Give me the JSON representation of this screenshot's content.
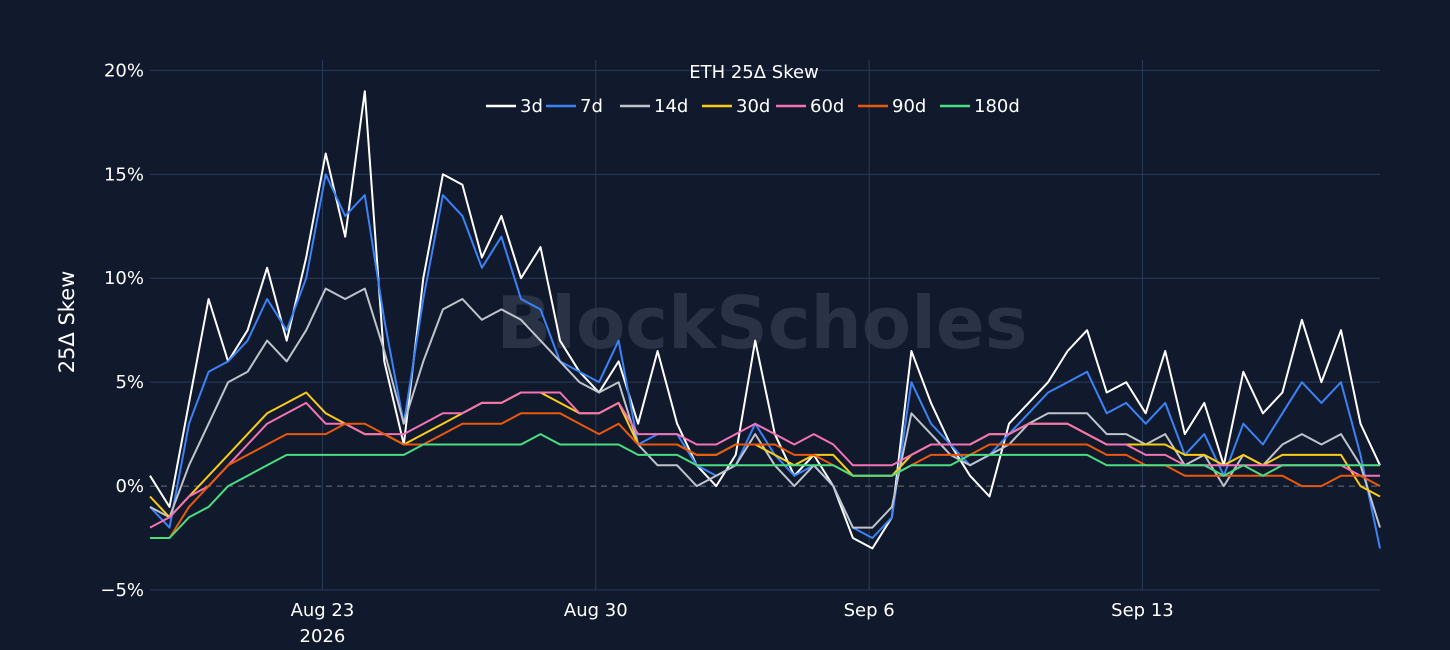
{
  "chart_data": {
    "type": "line",
    "title": "ETH 25Δ Skew",
    "ylabel": "25Δ Skew",
    "xlabel": "",
    "watermark": "BlockScholes",
    "x_range": [
      "2026-08-18T14:00",
      "2026-09-19T02:00"
    ],
    "ylim": [
      -5,
      20.5
    ],
    "y_ticks": [
      {
        "value": -5,
        "label": "−5%"
      },
      {
        "value": 0,
        "label": "0%"
      },
      {
        "value": 5,
        "label": "5%"
      },
      {
        "value": 10,
        "label": "10%"
      },
      {
        "value": 15,
        "label": "15%"
      },
      {
        "value": 20,
        "label": "20%"
      }
    ],
    "x_ticks": [
      {
        "value": "2026-08-23T00:00",
        "label": "Aug 23",
        "sublabel": "2026"
      },
      {
        "value": "2026-08-30T00:00",
        "label": "Aug 30",
        "sublabel": ""
      },
      {
        "value": "2026-09-06T00:00",
        "label": "Sep 6",
        "sublabel": ""
      },
      {
        "value": "2026-09-13T00:00",
        "label": "Sep 13",
        "sublabel": ""
      }
    ],
    "grid": true,
    "zero_line": "dashed",
    "legend_placement": "top-center",
    "x": [
      "2026-08-18T14:00",
      "2026-08-19T02:00",
      "2026-08-19T14:00",
      "2026-08-20T02:00",
      "2026-08-20T14:00",
      "2026-08-21T02:00",
      "2026-08-21T14:00",
      "2026-08-22T02:00",
      "2026-08-22T14:00",
      "2026-08-23T02:00",
      "2026-08-23T14:00",
      "2026-08-24T02:00",
      "2026-08-24T14:00",
      "2026-08-25T02:00",
      "2026-08-25T14:00",
      "2026-08-26T02:00",
      "2026-08-26T14:00",
      "2026-08-27T02:00",
      "2026-08-27T14:00",
      "2026-08-28T02:00",
      "2026-08-28T14:00",
      "2026-08-29T02:00",
      "2026-08-29T14:00",
      "2026-08-30T02:00",
      "2026-08-30T14:00",
      "2026-08-31T02:00",
      "2026-08-31T14:00",
      "2026-09-01T02:00",
      "2026-09-01T14:00",
      "2026-09-02T02:00",
      "2026-09-02T14:00",
      "2026-09-03T02:00",
      "2026-09-03T14:00",
      "2026-09-04T02:00",
      "2026-09-04T14:00",
      "2026-09-05T02:00",
      "2026-09-05T14:00",
      "2026-09-06T02:00",
      "2026-09-06T14:00",
      "2026-09-07T02:00",
      "2026-09-07T14:00",
      "2026-09-08T02:00",
      "2026-09-08T14:00",
      "2026-09-09T02:00",
      "2026-09-09T14:00",
      "2026-09-10T02:00",
      "2026-09-10T14:00",
      "2026-09-11T02:00",
      "2026-09-11T14:00",
      "2026-09-12T02:00",
      "2026-09-12T14:00",
      "2026-09-13T02:00",
      "2026-09-13T14:00",
      "2026-09-14T02:00",
      "2026-09-14T14:00",
      "2026-09-15T02:00",
      "2026-09-15T14:00",
      "2026-09-16T02:00",
      "2026-09-16T14:00",
      "2026-09-17T02:00",
      "2026-09-17T14:00",
      "2026-09-18T02:00",
      "2026-09-18T14:00",
      "2026-09-19T02:00"
    ],
    "series": [
      {
        "name": "3d",
        "color": "#ffffff",
        "values": [
          0.5,
          -1.0,
          4.0,
          9.0,
          6.0,
          7.5,
          10.5,
          7.0,
          11.0,
          16.0,
          12.0,
          19.0,
          6.0,
          2.0,
          10.0,
          15.0,
          14.5,
          11.0,
          13.0,
          10.0,
          11.5,
          7.0,
          5.5,
          4.5,
          6.0,
          3.0,
          6.5,
          3.0,
          1.0,
          0.0,
          1.5,
          7.0,
          2.5,
          0.5,
          1.5,
          0.0,
          -2.5,
          -3.0,
          -1.5,
          6.5,
          4.0,
          2.0,
          0.5,
          -0.5,
          3.0,
          4.0,
          5.0,
          6.5,
          7.5,
          4.5,
          5.0,
          3.5,
          6.5,
          2.5,
          4.0,
          1.0,
          5.5,
          3.5,
          4.5,
          8.0,
          5.0,
          7.5,
          3.0,
          1.0
        ]
      },
      {
        "name": "7d",
        "color": "#3b82f6",
        "values": [
          -1.0,
          -2.0,
          3.0,
          5.5,
          6.0,
          7.0,
          9.0,
          7.5,
          10.0,
          15.0,
          13.0,
          14.0,
          8.0,
          3.0,
          9.0,
          14.0,
          13.0,
          10.5,
          12.0,
          9.0,
          8.5,
          6.0,
          5.5,
          5.0,
          7.0,
          2.0,
          2.5,
          2.5,
          1.0,
          0.5,
          1.0,
          3.0,
          1.5,
          0.5,
          1.0,
          0.0,
          -2.0,
          -2.5,
          -1.5,
          5.0,
          3.0,
          2.0,
          1.0,
          1.5,
          2.5,
          3.5,
          4.5,
          5.0,
          5.5,
          3.5,
          4.0,
          3.0,
          4.0,
          1.5,
          2.5,
          0.5,
          3.0,
          2.0,
          3.5,
          5.0,
          4.0,
          5.0,
          1.5,
          -3.0
        ]
      },
      {
        "name": "14d",
        "color": "#bfc3cc",
        "values": [
          -1.0,
          -1.5,
          1.0,
          3.0,
          5.0,
          5.5,
          7.0,
          6.0,
          7.5,
          9.5,
          9.0,
          9.5,
          6.5,
          3.0,
          6.0,
          8.5,
          9.0,
          8.0,
          8.5,
          8.0,
          7.0,
          6.0,
          5.0,
          4.5,
          5.0,
          2.0,
          1.0,
          1.0,
          0.0,
          0.5,
          1.0,
          2.5,
          1.0,
          0.0,
          1.0,
          0.0,
          -2.0,
          -2.0,
          -1.0,
          3.5,
          2.5,
          1.5,
          1.0,
          1.5,
          2.0,
          3.0,
          3.5,
          3.5,
          3.5,
          2.5,
          2.5,
          2.0,
          2.5,
          1.0,
          1.5,
          0.0,
          1.5,
          1.0,
          2.0,
          2.5,
          2.0,
          2.5,
          1.0,
          -2.0
        ]
      },
      {
        "name": "30d",
        "color": "#facc15",
        "values": [
          -0.5,
          -1.5,
          -0.5,
          0.5,
          1.5,
          2.5,
          3.5,
          4.0,
          4.5,
          3.5,
          3.0,
          2.5,
          2.5,
          2.0,
          2.5,
          3.0,
          3.5,
          4.0,
          4.0,
          4.5,
          4.5,
          4.0,
          3.5,
          3.5,
          4.0,
          2.0,
          2.0,
          2.0,
          1.5,
          1.5,
          2.0,
          2.0,
          1.5,
          1.0,
          1.5,
          1.5,
          0.5,
          0.5,
          0.5,
          1.5,
          2.0,
          2.0,
          2.0,
          2.5,
          2.5,
          3.0,
          3.0,
          3.0,
          2.5,
          2.0,
          2.0,
          2.0,
          2.0,
          1.5,
          1.5,
          1.0,
          1.5,
          1.0,
          1.5,
          1.5,
          1.5,
          1.5,
          0.0,
          -0.5
        ]
      },
      {
        "name": "60d",
        "color": "#f472b6",
        "values": [
          -2.0,
          -1.5,
          -0.5,
          0.0,
          1.0,
          2.0,
          3.0,
          3.5,
          4.0,
          3.0,
          3.0,
          2.5,
          2.5,
          2.5,
          3.0,
          3.5,
          3.5,
          4.0,
          4.0,
          4.5,
          4.5,
          4.5,
          3.5,
          3.5,
          4.0,
          2.5,
          2.5,
          2.5,
          2.0,
          2.0,
          2.5,
          3.0,
          2.5,
          2.0,
          2.5,
          2.0,
          1.0,
          1.0,
          1.0,
          1.5,
          2.0,
          2.0,
          2.0,
          2.5,
          2.5,
          3.0,
          3.0,
          3.0,
          2.5,
          2.0,
          2.0,
          1.5,
          1.5,
          1.0,
          1.0,
          1.0,
          1.0,
          1.0,
          1.0,
          1.0,
          1.0,
          1.0,
          0.5,
          0.5
        ]
      },
      {
        "name": "90d",
        "color": "#ea580c",
        "values": [
          -2.5,
          -2.5,
          -1.0,
          0.0,
          1.0,
          1.5,
          2.0,
          2.5,
          2.5,
          2.5,
          3.0,
          3.0,
          2.5,
          2.0,
          2.0,
          2.5,
          3.0,
          3.0,
          3.0,
          3.5,
          3.5,
          3.5,
          3.0,
          2.5,
          3.0,
          2.0,
          2.0,
          2.0,
          1.5,
          1.5,
          2.0,
          2.0,
          2.0,
          1.5,
          1.5,
          1.0,
          0.5,
          0.5,
          0.5,
          1.0,
          1.5,
          1.5,
          1.5,
          2.0,
          2.0,
          2.0,
          2.0,
          2.0,
          2.0,
          1.5,
          1.5,
          1.0,
          1.0,
          0.5,
          0.5,
          0.5,
          0.5,
          0.5,
          0.5,
          0.0,
          0.0,
          0.5,
          0.5,
          0.0
        ]
      },
      {
        "name": "180d",
        "color": "#4ade80",
        "values": [
          -2.5,
          -2.5,
          -1.5,
          -1.0,
          0.0,
          0.5,
          1.0,
          1.5,
          1.5,
          1.5,
          1.5,
          1.5,
          1.5,
          1.5,
          2.0,
          2.0,
          2.0,
          2.0,
          2.0,
          2.0,
          2.5,
          2.0,
          2.0,
          2.0,
          2.0,
          1.5,
          1.5,
          1.5,
          1.0,
          1.0,
          1.0,
          1.0,
          1.0,
          1.0,
          1.0,
          1.0,
          0.5,
          0.5,
          0.5,
          1.0,
          1.0,
          1.0,
          1.5,
          1.5,
          1.5,
          1.5,
          1.5,
          1.5,
          1.5,
          1.0,
          1.0,
          1.0,
          1.0,
          1.0,
          1.0,
          0.5,
          1.0,
          0.5,
          1.0,
          1.0,
          1.0,
          1.0,
          1.0,
          1.0
        ]
      }
    ]
  }
}
